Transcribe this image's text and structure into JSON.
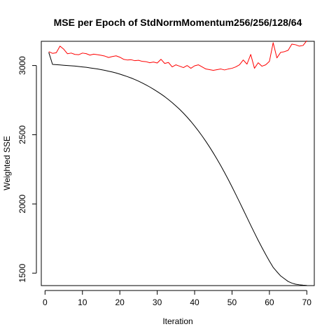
{
  "chart_data": {
    "type": "line",
    "title": "MSE per Epoch of StdNormMomentum256/256/128/64",
    "xlabel": "Iteration",
    "ylabel": "Weighted SSE",
    "xlim": [
      -1,
      72
    ],
    "ylim": [
      1410,
      3175
    ],
    "xticks": [
      0,
      10,
      20,
      30,
      40,
      50,
      60,
      70
    ],
    "yticks": [
      1500,
      2000,
      2500,
      3000
    ],
    "grid": false,
    "legend": "none",
    "series": [
      {
        "color": "#000000",
        "x": [
          1,
          2,
          3,
          4,
          5,
          6,
          7,
          8,
          9,
          10,
          11,
          12,
          13,
          14,
          15,
          16,
          17,
          18,
          19,
          20,
          21,
          22,
          23,
          24,
          25,
          26,
          27,
          28,
          29,
          30,
          31,
          32,
          33,
          34,
          35,
          36,
          37,
          38,
          39,
          40,
          41,
          42,
          43,
          44,
          45,
          46,
          47,
          48,
          49,
          50,
          51,
          52,
          53,
          54,
          55,
          56,
          57,
          58,
          59,
          60,
          61,
          62,
          63,
          64,
          65,
          66,
          67,
          68,
          69,
          70
        ],
        "values": [
          3095,
          3008,
          3006,
          3004,
          3002,
          3000,
          2998,
          2996,
          2993,
          2990,
          2987,
          2983,
          2979,
          2975,
          2970,
          2965,
          2959,
          2953,
          2946,
          2938,
          2929,
          2920,
          2910,
          2899,
          2887,
          2874,
          2860,
          2845,
          2829,
          2812,
          2794,
          2775,
          2754,
          2732,
          2708,
          2683,
          2656,
          2627,
          2596,
          2563,
          2528,
          2491,
          2452,
          2411,
          2368,
          2323,
          2276,
          2227,
          2176,
          2123,
          2069,
          2014,
          1958,
          1902,
          1846,
          1791,
          1737,
          1685,
          1635,
          1587,
          1542,
          1510,
          1480,
          1460,
          1440,
          1428,
          1420,
          1416,
          1413,
          1411
        ]
      },
      {
        "color": "#ff0000",
        "x": [
          1,
          2,
          3,
          4,
          5,
          6,
          7,
          8,
          9,
          10,
          11,
          12,
          13,
          14,
          15,
          16,
          17,
          18,
          19,
          20,
          21,
          22,
          23,
          24,
          25,
          26,
          27,
          28,
          29,
          30,
          31,
          32,
          33,
          34,
          35,
          36,
          37,
          38,
          39,
          40,
          41,
          42,
          43,
          44,
          45,
          46,
          47,
          48,
          49,
          50,
          51,
          52,
          53,
          54,
          55,
          56,
          57,
          58,
          59,
          60,
          61,
          62,
          63,
          64,
          65,
          66,
          67,
          68,
          69,
          70
        ],
        "values": [
          3100,
          3088,
          3092,
          3140,
          3118,
          3085,
          3090,
          3080,
          3078,
          3090,
          3086,
          3075,
          3082,
          3078,
          3074,
          3068,
          3058,
          3065,
          3070,
          3060,
          3045,
          3040,
          3042,
          3035,
          3038,
          3030,
          3028,
          3020,
          3025,
          3018,
          3045,
          3015,
          3022,
          2990,
          3005,
          2995,
          2985,
          3000,
          2980,
          2998,
          3005,
          2990,
          2975,
          2970,
          2965,
          2970,
          2975,
          2968,
          2975,
          2980,
          2990,
          3005,
          3040,
          3010,
          3080,
          2980,
          3020,
          2995,
          3005,
          3030,
          3165,
          3055,
          3095,
          3100,
          3110,
          3155,
          3150,
          3140,
          3145,
          3180
        ]
      }
    ]
  }
}
